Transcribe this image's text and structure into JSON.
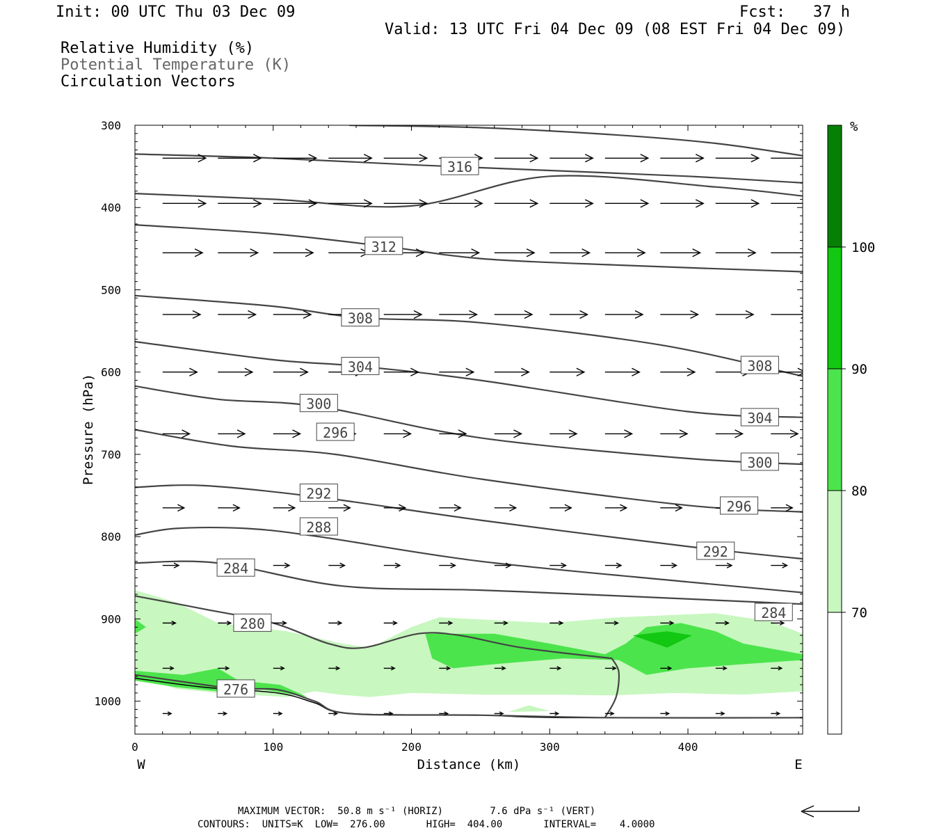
{
  "header": {
    "init": "Init: 00 UTC Thu 03 Dec 09",
    "fcst": "Fcst:   37 h",
    "valid": "Valid: 13 UTC Fri 04 Dec 09 (08 EST Fri 04 Dec 09)",
    "field1": "Relative Humidity (%)",
    "field2": "Potential Temperature (K)",
    "field3": "Circulation Vectors"
  },
  "footer": {
    "max_vector": "MAXIMUM VECTOR:  50.8 m s⁻¹ (HORIZ)        7.6 dPa s⁻¹ (VERT)",
    "contours": "CONTOURS:  UNITS=K  LOW=  276.00       HIGH=  404.00       INTERVAL=    4.0000"
  },
  "chart_data": {
    "type": "cross-section",
    "xlabel": "Distance (km)",
    "ylabel": "Pressure (hPa)",
    "xlim": [
      0,
      483
    ],
    "ylim": [
      1040,
      300
    ],
    "x_ticks": [
      0,
      100,
      200,
      300,
      400
    ],
    "y_ticks": [
      300,
      400,
      500,
      600,
      700,
      800,
      900,
      1000
    ],
    "x_end_labels": {
      "left": "W",
      "right": "E"
    },
    "colorbar": {
      "unit": "%",
      "levels": [
        70,
        80,
        90,
        100
      ],
      "colors": [
        "#ffffff",
        "#c8f7c0",
        "#4ce44c",
        "#12c812",
        "#058005"
      ]
    },
    "colors": {
      "contour": "#444444",
      "vector": "#000000",
      "ground": "#000000"
    },
    "theta_contours": [
      {
        "label": "316",
        "label_x": 235,
        "label_p": 350,
        "points": [
          [
            0,
            335
          ],
          [
            100,
            340
          ],
          [
            200,
            348
          ],
          [
            300,
            355
          ],
          [
            400,
            362
          ],
          [
            483,
            370
          ]
        ]
      },
      {
        "label": "",
        "label_x": null,
        "label_p": null,
        "points": [
          [
            155,
            300
          ],
          [
            250,
            303
          ],
          [
            350,
            312
          ],
          [
            420,
            322
          ],
          [
            483,
            337
          ]
        ]
      },
      {
        "label": "",
        "label_x": null,
        "label_p": null,
        "points": [
          [
            0,
            383
          ],
          [
            100,
            390
          ],
          [
            200,
            398
          ],
          [
            300,
            362
          ],
          [
            420,
            375
          ],
          [
            483,
            386
          ]
        ]
      },
      {
        "label": "312",
        "label_x": 180,
        "label_p": 447,
        "points": [
          [
            0,
            421
          ],
          [
            100,
            432
          ],
          [
            180,
            447
          ],
          [
            250,
            462
          ],
          [
            350,
            470
          ],
          [
            483,
            478
          ]
        ]
      },
      {
        "label": "308",
        "label_x": 163,
        "label_p": 534,
        "points": [
          [
            0,
            507
          ],
          [
            100,
            520
          ],
          [
            163,
            534
          ],
          [
            250,
            540
          ],
          [
            380,
            567
          ],
          [
            483,
            605
          ]
        ]
      },
      {
        "label": "304",
        "label_x": 163,
        "label_p": 593,
        "points": [
          [
            0,
            563
          ],
          [
            100,
            585
          ],
          [
            163,
            593
          ],
          [
            250,
            610
          ],
          [
            400,
            648
          ],
          [
            483,
            655
          ]
        ]
      },
      {
        "label": "300",
        "label_x": 133,
        "label_p": 638,
        "points": [
          [
            0,
            617
          ],
          [
            60,
            633
          ],
          [
            133,
            642
          ],
          [
            250,
            680
          ],
          [
            400,
            705
          ],
          [
            483,
            712
          ]
        ]
      },
      {
        "label": "296",
        "label_x": 145,
        "label_p": 673,
        "points": [
          [
            0,
            670
          ],
          [
            70,
            690
          ],
          [
            145,
            700
          ],
          [
            250,
            730
          ],
          [
            400,
            762
          ],
          [
            483,
            770
          ]
        ]
      },
      {
        "label": "292",
        "label_x": 133,
        "label_p": 747,
        "points": [
          [
            0,
            740
          ],
          [
            50,
            738
          ],
          [
            133,
            752
          ],
          [
            250,
            780
          ],
          [
            400,
            812
          ],
          [
            483,
            827
          ]
        ]
      },
      {
        "label": "288",
        "label_x": 133,
        "label_p": 788,
        "points": [
          [
            0,
            798
          ],
          [
            30,
            790
          ],
          [
            80,
            790
          ],
          [
            133,
            800
          ],
          [
            250,
            830
          ],
          [
            400,
            855
          ],
          [
            483,
            868
          ]
        ]
      },
      {
        "label": "284",
        "label_x": 73,
        "label_p": 838,
        "points": [
          [
            0,
            832
          ],
          [
            60,
            832
          ],
          [
            150,
            860
          ],
          [
            250,
            865
          ],
          [
            350,
            872
          ],
          [
            483,
            882
          ]
        ]
      },
      {
        "label": "280",
        "label_x": 85,
        "label_p": 905,
        "points": [
          [
            0,
            872
          ],
          [
            50,
            888
          ],
          [
            100,
            905
          ],
          [
            140,
            930
          ],
          [
            165,
            935
          ],
          [
            205,
            918
          ],
          [
            235,
            920
          ],
          [
            280,
            935
          ],
          [
            345,
            948
          ]
        ]
      },
      {
        "label": "276",
        "label_x": 73,
        "label_p": 985,
        "points": [
          [
            0,
            968
          ],
          [
            50,
            980
          ],
          [
            73,
            985
          ],
          [
            103,
            986
          ],
          [
            130,
            1000
          ],
          [
            155,
            1015
          ],
          [
            250,
            1017
          ],
          [
            345,
            1020
          ],
          [
            483,
            1020
          ]
        ]
      }
    ],
    "ground_line": [
      [
        0,
        972
      ],
      [
        50,
        983
      ],
      [
        103,
        990
      ],
      [
        130,
        1002
      ],
      [
        155,
        1015
      ],
      [
        250,
        1017
      ],
      [
        310,
        1020
      ],
      [
        483,
        1020
      ]
    ],
    "rh_regions": [
      {
        "level": 70,
        "polygon": [
          [
            0,
            865
          ],
          [
            30,
            880
          ],
          [
            60,
            905
          ],
          [
            110,
            915
          ],
          [
            150,
            930
          ],
          [
            170,
            935
          ],
          [
            200,
            910
          ],
          [
            220,
            898
          ],
          [
            300,
            905
          ],
          [
            350,
            898
          ],
          [
            420,
            893
          ],
          [
            460,
            903
          ],
          [
            483,
            918
          ],
          [
            483,
            988
          ],
          [
            440,
            992
          ],
          [
            390,
            990
          ],
          [
            345,
            993
          ],
          [
            300,
            992
          ],
          [
            250,
            992
          ],
          [
            200,
            990
          ],
          [
            170,
            995
          ],
          [
            148,
            992
          ],
          [
            130,
            988
          ],
          [
            110,
            995
          ],
          [
            60,
            990
          ],
          [
            30,
            985
          ],
          [
            0,
            968
          ]
        ]
      },
      {
        "level": 70,
        "polygon": [
          [
            270,
            1013
          ],
          [
            300,
            1012
          ],
          [
            285,
            1005
          ]
        ]
      },
      {
        "level": 80,
        "polygon": [
          [
            0,
            900
          ],
          [
            8,
            910
          ],
          [
            0,
            918
          ]
        ]
      },
      {
        "level": 80,
        "polygon": [
          [
            0,
            963
          ],
          [
            35,
            968
          ],
          [
            60,
            960
          ],
          [
            75,
            975
          ],
          [
            105,
            980
          ],
          [
            125,
            995
          ],
          [
            90,
            985
          ],
          [
            60,
            988
          ],
          [
            30,
            983
          ],
          [
            0,
            975
          ]
        ]
      },
      {
        "level": 80,
        "polygon": [
          [
            210,
            918
          ],
          [
            260,
            918
          ],
          [
            300,
            930
          ],
          [
            340,
            943
          ],
          [
            355,
            930
          ],
          [
            370,
            910
          ],
          [
            395,
            905
          ],
          [
            420,
            915
          ],
          [
            440,
            930
          ],
          [
            483,
            943
          ],
          [
            483,
            950
          ],
          [
            440,
            955
          ],
          [
            400,
            960
          ],
          [
            370,
            968
          ],
          [
            350,
            950
          ],
          [
            310,
            948
          ],
          [
            260,
            955
          ],
          [
            230,
            960
          ],
          [
            215,
            948
          ]
        ]
      },
      {
        "level": 90,
        "polygon": [
          [
            360,
            920
          ],
          [
            385,
            915
          ],
          [
            403,
            920
          ],
          [
            385,
            935
          ]
        ]
      }
    ],
    "vector_rows": [
      {
        "p": 340,
        "u": 40,
        "w": 0
      },
      {
        "p": 395,
        "u": 40,
        "w": 0
      },
      {
        "p": 455,
        "u": 37,
        "w": 0
      },
      {
        "p": 530,
        "u": 35,
        "w": 0
      },
      {
        "p": 600,
        "u": 32,
        "w": 0
      },
      {
        "p": 675,
        "u": 25,
        "w": 0
      },
      {
        "p": 765,
        "u": 20,
        "w": 0
      },
      {
        "p": 835,
        "u": 15,
        "w": 0
      },
      {
        "p": 905,
        "u": 12,
        "w": 0
      },
      {
        "p": 960,
        "u": 10,
        "w": 0
      },
      {
        "p": 1015,
        "u": 8,
        "w": 0
      }
    ],
    "vector_x": [
      20,
      60,
      100,
      140,
      180,
      220,
      260,
      300,
      340,
      380,
      420,
      460
    ]
  }
}
